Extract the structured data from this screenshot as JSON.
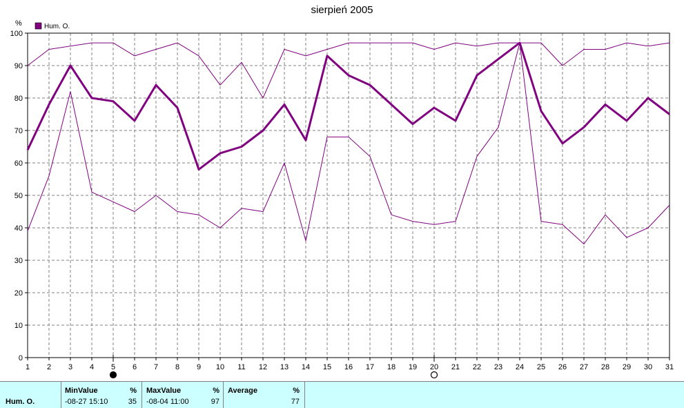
{
  "title": "sierpień 2005",
  "colors": {
    "series": "#800080",
    "grid": "#808080",
    "stats_bg": "#ccffff"
  },
  "moon_phases": [
    {
      "day": 5,
      "icon": "full-moon-icon"
    },
    {
      "day": 20,
      "icon": "new-moon-icon"
    }
  ],
  "chart_data": {
    "type": "line",
    "ylabel": "%",
    "ylim": [
      0,
      100
    ],
    "yticks": [
      0,
      10,
      20,
      30,
      40,
      50,
      60,
      70,
      80,
      90,
      100
    ],
    "xlim": [
      1,
      31
    ],
    "x": [
      1,
      2,
      3,
      4,
      5,
      6,
      7,
      8,
      9,
      10,
      11,
      12,
      13,
      14,
      15,
      16,
      17,
      18,
      19,
      20,
      21,
      22,
      23,
      24,
      25,
      26,
      27,
      28,
      29,
      30,
      31
    ],
    "legend": {
      "label": "Hum. O.",
      "position": "top-left"
    },
    "grid": true,
    "series": [
      {
        "name": "Hum. O.",
        "role": "average",
        "values": [
          64,
          78,
          90,
          80,
          79,
          73,
          84,
          77,
          58,
          63,
          65,
          70,
          78,
          67,
          93,
          87,
          84,
          78,
          72,
          77,
          73,
          87,
          92,
          97,
          76,
          66,
          71,
          78,
          73,
          80,
          75
        ]
      },
      {
        "role": "max",
        "values": [
          90,
          95,
          96,
          97,
          97,
          93,
          95,
          97,
          93,
          84,
          91,
          80,
          95,
          93,
          95,
          97,
          97,
          97,
          97,
          95,
          97,
          96,
          97,
          97,
          97,
          90,
          95,
          95,
          97,
          96,
          97
        ]
      },
      {
        "role": "min",
        "values": [
          39,
          56,
          82,
          51,
          48,
          45,
          50,
          45,
          44,
          40,
          46,
          45,
          60,
          36,
          68,
          68,
          62,
          44,
          42,
          41,
          42,
          62,
          71,
          97,
          42,
          41,
          35,
          44,
          37,
          40,
          47
        ]
      }
    ]
  },
  "stats": {
    "row_label": "Hum. O.",
    "min": {
      "label": "MinValue",
      "unit": "%",
      "time": "-08-27  15:10",
      "value": "35"
    },
    "max": {
      "label": "MaxValue",
      "unit": "%",
      "time": "-08-04  11:00",
      "value": "97"
    },
    "avg": {
      "label": "Average",
      "unit": "%",
      "value": "77"
    }
  }
}
